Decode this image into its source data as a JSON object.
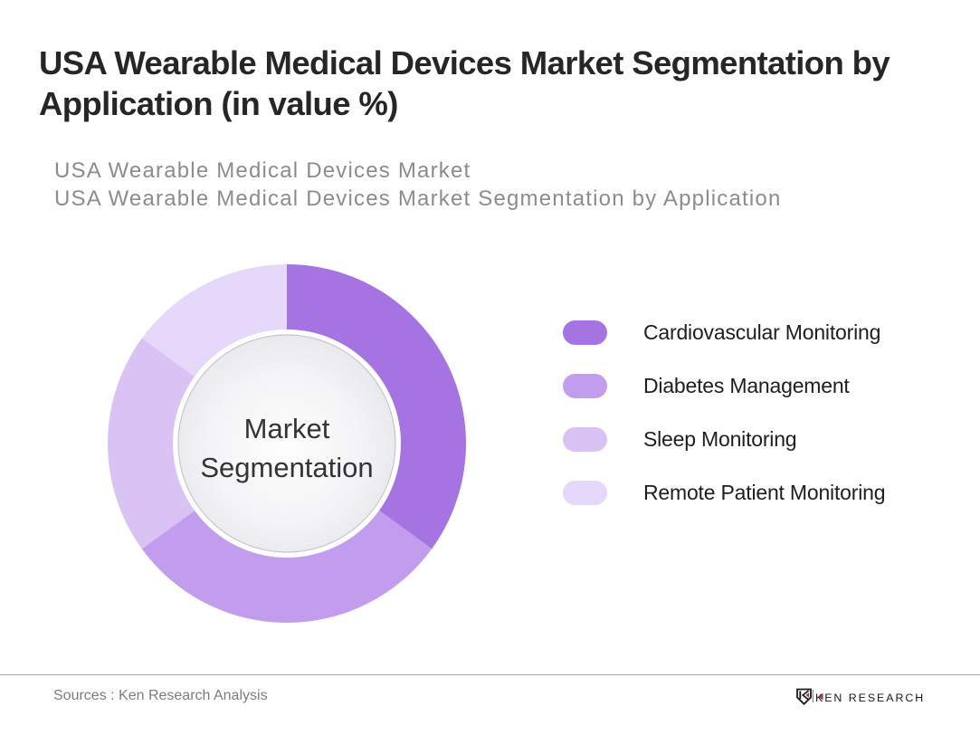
{
  "header": {
    "title": "USA Wearable Medical Devices Market Segmentation by Application (in value %)",
    "subtitle_lines": [
      "USA Wearable Medical Devices Market",
      "USA Wearable Medical Devices Market Segmentation by Application"
    ]
  },
  "chart_data": {
    "type": "pie",
    "variant": "donut",
    "title": "USA Wearable Medical Devices Market Segmentation by Application (in value %)",
    "center_label": "Market Segmentation",
    "unit": "value %",
    "start_angle_deg": 0,
    "clockwise": true,
    "legend_position": "right",
    "segments": [
      {
        "label": "Cardiovascular Monitoring",
        "value": 35,
        "color": "#a674e2"
      },
      {
        "label": "Diabetes Management",
        "value": 30,
        "color": "#c29dee"
      },
      {
        "label": "Sleep Monitoring",
        "value": 20,
        "color": "#d9c2f4"
      },
      {
        "label": "Remote Patient Monitoring",
        "value": 15,
        "color": "#e6d8fa"
      }
    ]
  },
  "footer": {
    "sources": "Sources : Ken Research Analysis",
    "logo_text": "KEN RESEARCH"
  }
}
